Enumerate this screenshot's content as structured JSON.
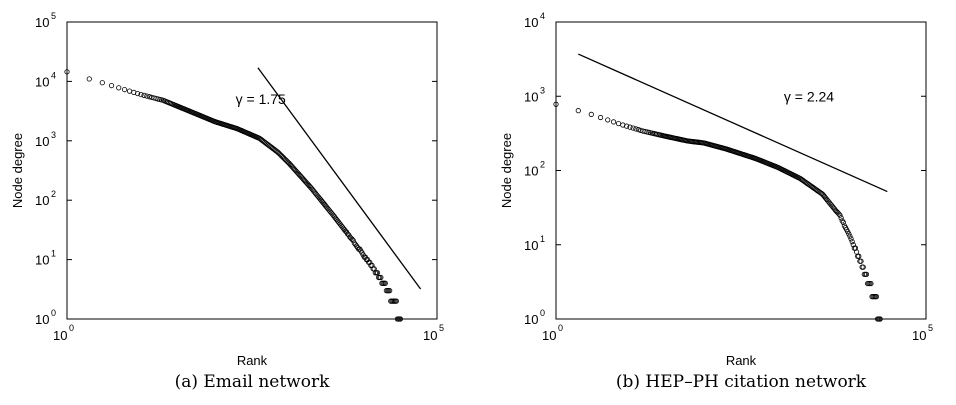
{
  "chart_data": [
    {
      "type": "scatter",
      "caption": "(a) Email network",
      "xlabel": "Rank",
      "ylabel": "Node degree",
      "xscale": "log",
      "yscale": "log",
      "xlim": [
        1,
        100000
      ],
      "ylim": [
        1,
        100000
      ],
      "x_ticks": [
        {
          "base": "10",
          "exp": "0",
          "value": 1
        },
        {
          "base": "10",
          "exp": "5",
          "value": 100000
        }
      ],
      "y_ticks": [
        {
          "base": "10",
          "exp": "0",
          "value": 1
        },
        {
          "base": "10",
          "exp": "1",
          "value": 10
        },
        {
          "base": "10",
          "exp": "2",
          "value": 100
        },
        {
          "base": "10",
          "exp": "3",
          "value": 1000
        },
        {
          "base": "10",
          "exp": "4",
          "value": 10000
        },
        {
          "base": "10",
          "exp": "5",
          "value": 100000
        }
      ],
      "annotation": {
        "text": "γ = 1.75",
        "x": 190,
        "y": 4200
      },
      "fit_line": {
        "x": [
          380,
          60000
        ],
        "y": [
          17000,
          3.2
        ]
      },
      "series": [
        {
          "marker": "circle",
          "anchors": [
            [
              1,
              14500
            ],
            [
              2,
              11000
            ],
            [
              3,
              9500
            ],
            [
              5,
              7800
            ],
            [
              10,
              6000
            ],
            [
              20,
              4800
            ],
            [
              50,
              3000
            ],
            [
              100,
              2100
            ],
            [
              200,
              1600
            ],
            [
              400,
              1100
            ],
            [
              700,
              650
            ],
            [
              1000,
              420
            ],
            [
              2000,
              160
            ],
            [
              4000,
              55
            ],
            [
              8000,
              18
            ],
            [
              12000,
              9
            ],
            [
              18000,
              4.5
            ],
            [
              22000,
              3
            ],
            [
              26000,
              2
            ],
            [
              32000,
              1
            ]
          ]
        }
      ],
      "grid": false
    },
    {
      "type": "scatter",
      "caption": "(b) HEP–PH citation network",
      "xlabel": "Rank",
      "ylabel": "Node degree",
      "xscale": "log",
      "yscale": "log",
      "xlim": [
        1,
        100000
      ],
      "ylim": [
        1,
        10000
      ],
      "x_ticks": [
        {
          "base": "10",
          "exp": "0",
          "value": 1
        },
        {
          "base": "10",
          "exp": "5",
          "value": 100000
        }
      ],
      "y_ticks": [
        {
          "base": "10",
          "exp": "0",
          "value": 1
        },
        {
          "base": "10",
          "exp": "1",
          "value": 10
        },
        {
          "base": "10",
          "exp": "2",
          "value": 100
        },
        {
          "base": "10",
          "exp": "3",
          "value": 1000
        },
        {
          "base": "10",
          "exp": "4",
          "value": 10000
        }
      ],
      "annotation": {
        "text": "γ = 2.24",
        "x": 1200,
        "y": 850
      },
      "fit_line": {
        "x": [
          2,
          30000
        ],
        "y": [
          3700,
          52
        ]
      },
      "series": [
        {
          "marker": "circle",
          "anchors": [
            [
              1,
              780
            ],
            [
              2,
              640
            ],
            [
              3,
              570
            ],
            [
              5,
              480
            ],
            [
              8,
              410
            ],
            [
              15,
              340
            ],
            [
              30,
              290
            ],
            [
              60,
              250
            ],
            [
              100,
              235
            ],
            [
              200,
              195
            ],
            [
              500,
              145
            ],
            [
              1000,
              110
            ],
            [
              2000,
              78
            ],
            [
              4000,
              48
            ],
            [
              7000,
              24
            ],
            [
              10000,
              11
            ],
            [
              14000,
              5
            ],
            [
              17000,
              3
            ],
            [
              20000,
              2
            ],
            [
              24000,
              1
            ]
          ]
        }
      ],
      "grid": false
    }
  ]
}
